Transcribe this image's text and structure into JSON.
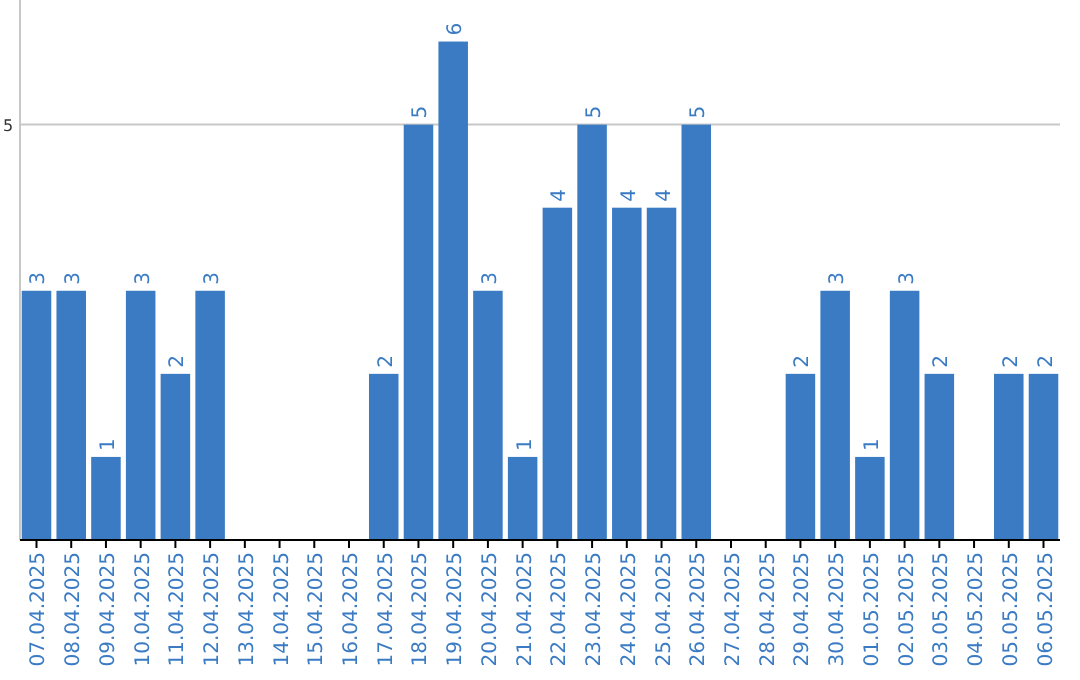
{
  "chart_data": {
    "type": "bar",
    "categories": [
      "07.04.2025",
      "08.04.2025",
      "09.04.2025",
      "10.04.2025",
      "11.04.2025",
      "12.04.2025",
      "13.04.2025",
      "14.04.2025",
      "15.04.2025",
      "16.04.2025",
      "17.04.2025",
      "18.04.2025",
      "19.04.2025",
      "20.04.2025",
      "21.04.2025",
      "22.04.2025",
      "23.04.2025",
      "24.04.2025",
      "25.04.2025",
      "26.04.2025",
      "27.04.2025",
      "28.04.2025",
      "29.04.2025",
      "30.04.2025",
      "01.05.2025",
      "02.05.2025",
      "03.05.2025",
      "04.05.2025",
      "05.05.2025",
      "06.05.2025"
    ],
    "values": [
      3,
      3,
      1,
      3,
      2,
      3,
      0,
      0,
      0,
      0,
      2,
      5,
      6,
      3,
      1,
      4,
      5,
      4,
      4,
      5,
      0,
      0,
      2,
      3,
      1,
      3,
      2,
      0,
      2,
      2
    ],
    "value_labels": [
      "3",
      "3",
      "1",
      "3",
      "2",
      "3",
      null,
      null,
      null,
      null,
      "2",
      "5",
      "6",
      "3",
      "1",
      "4",
      "5",
      "4",
      "4",
      "5",
      null,
      null,
      "2",
      "3",
      "1",
      "3",
      "2",
      null,
      "2",
      "2"
    ],
    "color": "#3a7bc4",
    "ylim": [
      0,
      6.5
    ],
    "yticks": [
      5
    ],
    "grid": "y"
  }
}
